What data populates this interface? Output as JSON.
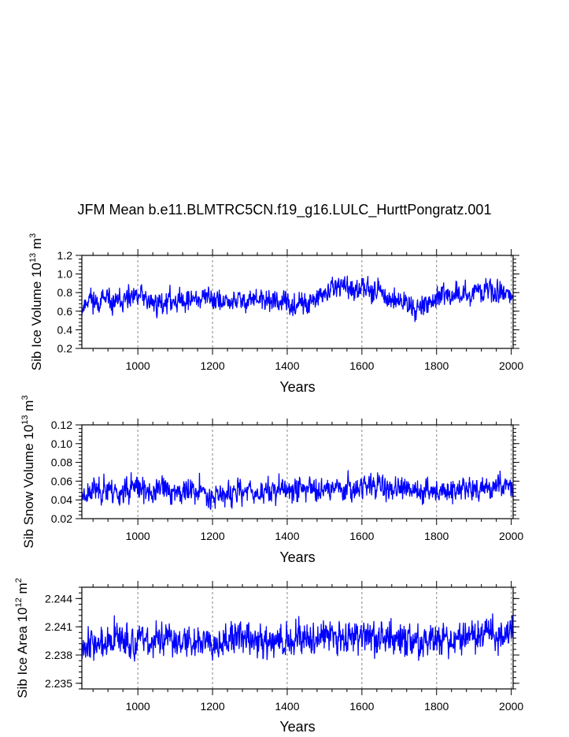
{
  "title": "JFM Mean b.e11.BLMTRC5CN.f19_g16.LULC_HurttPongratz.001",
  "chart_data": [
    {
      "type": "line",
      "name": "sib-ice-volume",
      "ylabel": "Sib Ice Volume 10",
      "ylabel_exp": "13",
      "ylabel_unit": " m",
      "ylabel_unit_exp": "3",
      "xlabel": "Years",
      "xlim": [
        850,
        2005
      ],
      "ylim": [
        0.2,
        1.2
      ],
      "xticks": [
        1000,
        1200,
        1400,
        1600,
        1800,
        2000
      ],
      "yticks": [
        0.2,
        0.4,
        0.6,
        0.8,
        1.0,
        1.2
      ],
      "ytick_labels": [
        "0.2",
        "0.4",
        "0.6",
        "0.8",
        "1.0",
        "1.2"
      ],
      "y_minor_step": 0.04,
      "vlines": [
        1000,
        1200,
        1400,
        1600,
        1800,
        2000
      ],
      "color": "#0000ff",
      "series_x": [
        850,
        870,
        890,
        910,
        930,
        950,
        970,
        990,
        1010,
        1030,
        1050,
        1070,
        1090,
        1110,
        1130,
        1150,
        1170,
        1190,
        1210,
        1230,
        1250,
        1270,
        1290,
        1310,
        1330,
        1350,
        1370,
        1390,
        1410,
        1430,
        1450,
        1470,
        1490,
        1510,
        1530,
        1550,
        1570,
        1590,
        1610,
        1630,
        1650,
        1670,
        1690,
        1710,
        1730,
        1750,
        1770,
        1790,
        1810,
        1830,
        1850,
        1870,
        1890,
        1910,
        1930,
        1950,
        1970,
        1990,
        2005
      ],
      "series_y": [
        0.62,
        0.75,
        0.7,
        0.72,
        0.68,
        0.7,
        0.72,
        0.73,
        0.78,
        0.7,
        0.68,
        0.7,
        0.72,
        0.73,
        0.71,
        0.74,
        0.72,
        0.76,
        0.73,
        0.68,
        0.7,
        0.71,
        0.72,
        0.73,
        0.7,
        0.72,
        0.71,
        0.7,
        0.65,
        0.68,
        0.66,
        0.7,
        0.75,
        0.8,
        0.85,
        0.88,
        0.82,
        0.78,
        0.9,
        0.84,
        0.8,
        0.74,
        0.72,
        0.7,
        0.67,
        0.63,
        0.68,
        0.72,
        0.76,
        0.74,
        0.8,
        0.76,
        0.8,
        0.82,
        0.84,
        0.8,
        0.83,
        0.82,
        0.7
      ]
    },
    {
      "type": "line",
      "name": "sib-snow-volume",
      "ylabel": "Sib Snow Volume 10",
      "ylabel_exp": "13",
      "ylabel_unit": " m",
      "ylabel_unit_exp": "3",
      "xlabel": "Years",
      "xlim": [
        850,
        2005
      ],
      "ylim": [
        0.02,
        0.12
      ],
      "xticks": [
        1000,
        1200,
        1400,
        1600,
        1800,
        2000
      ],
      "yticks": [
        0.02,
        0.04,
        0.06,
        0.08,
        0.1,
        0.12
      ],
      "ytick_labels": [
        "0.02",
        "0.04",
        "0.06",
        "0.08",
        "0.10",
        "0.12"
      ],
      "y_minor_step": 0.004,
      "vlines": [
        1000,
        1200,
        1400,
        1600,
        1800,
        2000
      ],
      "color": "#0000ff",
      "series_x": [
        850,
        870,
        890,
        910,
        930,
        950,
        970,
        990,
        1010,
        1030,
        1050,
        1070,
        1090,
        1110,
        1130,
        1150,
        1170,
        1190,
        1210,
        1230,
        1250,
        1270,
        1290,
        1310,
        1330,
        1350,
        1370,
        1390,
        1410,
        1430,
        1450,
        1470,
        1490,
        1510,
        1530,
        1550,
        1570,
        1590,
        1610,
        1630,
        1650,
        1670,
        1690,
        1710,
        1730,
        1750,
        1770,
        1790,
        1810,
        1830,
        1850,
        1870,
        1890,
        1910,
        1930,
        1950,
        1970,
        1990,
        2005
      ],
      "series_y": [
        0.045,
        0.05,
        0.052,
        0.05,
        0.049,
        0.048,
        0.05,
        0.052,
        0.05,
        0.049,
        0.05,
        0.052,
        0.05,
        0.048,
        0.049,
        0.05,
        0.048,
        0.047,
        0.046,
        0.045,
        0.046,
        0.048,
        0.049,
        0.05,
        0.048,
        0.049,
        0.05,
        0.051,
        0.05,
        0.052,
        0.053,
        0.052,
        0.051,
        0.053,
        0.054,
        0.052,
        0.053,
        0.054,
        0.056,
        0.055,
        0.054,
        0.053,
        0.052,
        0.05,
        0.049,
        0.048,
        0.05,
        0.051,
        0.052,
        0.05,
        0.052,
        0.053,
        0.055,
        0.05,
        0.052,
        0.053,
        0.055,
        0.054,
        0.05
      ]
    },
    {
      "type": "line",
      "name": "sib-ice-area",
      "ylabel": "Sib Ice Area 10",
      "ylabel_exp": "12",
      "ylabel_unit": " m",
      "ylabel_unit_exp": "2",
      "xlabel": "Years",
      "xlim": [
        850,
        2005
      ],
      "ylim": [
        2.2344,
        2.2452
      ],
      "xticks": [
        1000,
        1200,
        1400,
        1600,
        1800,
        2000
      ],
      "yticks": [
        2.235,
        2.238,
        2.241,
        2.244
      ],
      "ytick_labels": [
        "2.235",
        "2.238",
        "2.241",
        "2.244"
      ],
      "y_minor_step": 0.0006,
      "vlines": [
        1000,
        1200,
        1400,
        1600,
        1800,
        2000
      ],
      "color": "#0000ff",
      "series_x": [
        850,
        870,
        890,
        910,
        930,
        950,
        970,
        990,
        1010,
        1030,
        1050,
        1070,
        1090,
        1110,
        1130,
        1150,
        1170,
        1190,
        1210,
        1230,
        1250,
        1270,
        1290,
        1310,
        1330,
        1350,
        1370,
        1390,
        1410,
        1430,
        1450,
        1470,
        1490,
        1510,
        1530,
        1550,
        1570,
        1590,
        1610,
        1630,
        1650,
        1670,
        1690,
        1710,
        1730,
        1750,
        1770,
        1790,
        1810,
        1830,
        1850,
        1870,
        1890,
        1910,
        1930,
        1950,
        1970,
        1990,
        2005
      ],
      "series_y": [
        2.2393,
        2.2395,
        2.2392,
        2.239,
        2.2393,
        2.2396,
        2.2395,
        2.2392,
        2.2394,
        2.2396,
        2.2397,
        2.2395,
        2.2394,
        2.2396,
        2.2395,
        2.2394,
        2.2396,
        2.2398,
        2.2397,
        2.2395,
        2.2396,
        2.2398,
        2.2397,
        2.2395,
        2.2394,
        2.2396,
        2.2395,
        2.2394,
        2.2396,
        2.2398,
        2.2399,
        2.24,
        2.2401,
        2.2402,
        2.24,
        2.2399,
        2.2401,
        2.2402,
        2.2401,
        2.24,
        2.2399,
        2.2398,
        2.2397,
        2.2396,
        2.2395,
        2.2394,
        2.2395,
        2.2396,
        2.2397,
        2.2396,
        2.2398,
        2.2399,
        2.24,
        2.2401,
        2.2402,
        2.2401,
        2.24,
        2.2402,
        2.2403
      ]
    }
  ]
}
